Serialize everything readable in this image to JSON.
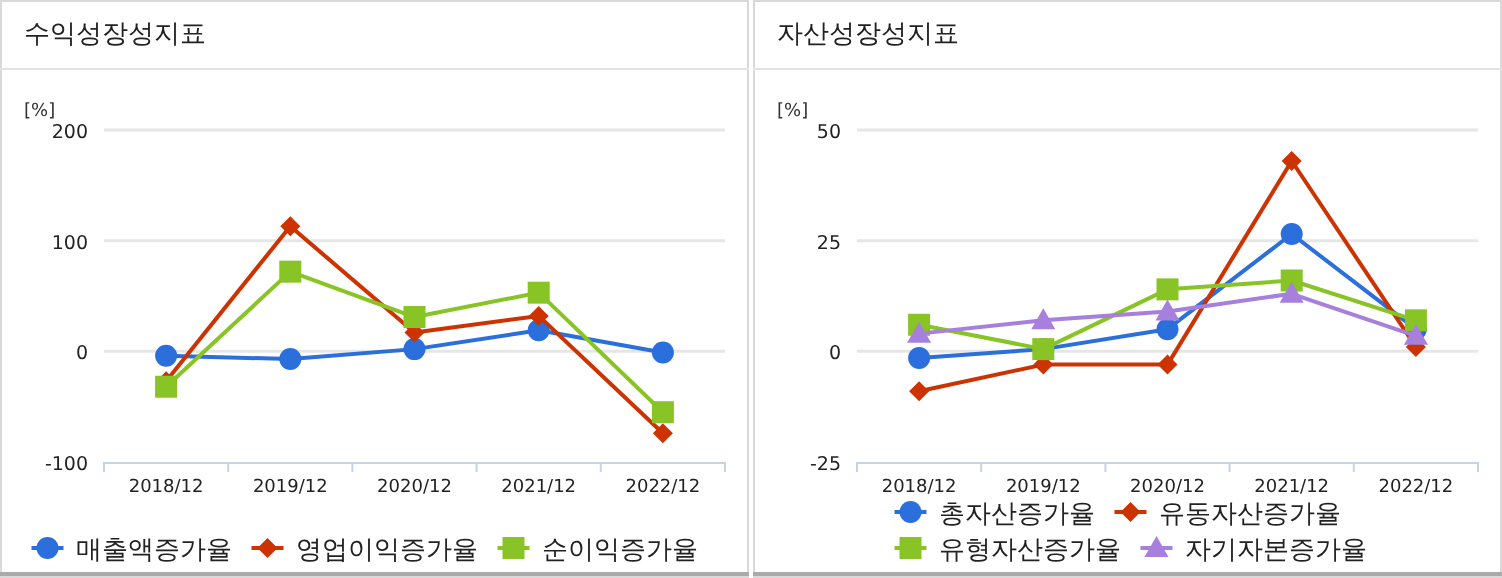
{
  "chart_data": [
    {
      "type": "line",
      "title": "수익성장성지표",
      "ylabel": "[%]",
      "categories": [
        "2018/12",
        "2019/12",
        "2020/12",
        "2021/12",
        "2022/12"
      ],
      "ylim": [
        -100,
        200
      ],
      "yticks": [
        -100,
        0,
        100,
        200
      ],
      "grid": "y",
      "legend": "bottom",
      "series": [
        {
          "name": "매출액증가율",
          "color": "#2a6fdb",
          "marker": "circle",
          "values": [
            -4,
            -7,
            2,
            19,
            -1
          ]
        },
        {
          "name": "영업이익증가율",
          "color": "#cc3300",
          "marker": "diamond",
          "values": [
            -27,
            113,
            17,
            32,
            -74
          ]
        },
        {
          "name": "순이익증가율",
          "color": "#88c425",
          "marker": "square",
          "values": [
            -32,
            72,
            31,
            53,
            -55
          ]
        }
      ]
    },
    {
      "type": "line",
      "title": "자산성장성지표",
      "ylabel": "[%]",
      "categories": [
        "2018/12",
        "2019/12",
        "2020/12",
        "2021/12",
        "2022/12"
      ],
      "ylim": [
        -25,
        50
      ],
      "yticks": [
        -25,
        0,
        25,
        50
      ],
      "grid": "y",
      "legend": "bottom",
      "series": [
        {
          "name": "총자산증가율",
          "color": "#2a6fdb",
          "marker": "circle",
          "values": [
            -1.5,
            0.5,
            5,
            26.5,
            5
          ]
        },
        {
          "name": "유동자산증가율",
          "color": "#cc3300",
          "marker": "diamond",
          "values": [
            -9,
            -3,
            -3,
            43,
            1
          ]
        },
        {
          "name": "유형자산증가율",
          "color": "#88c425",
          "marker": "square",
          "values": [
            6,
            0.5,
            14,
            16,
            7
          ]
        },
        {
          "name": "자기자본증가율",
          "color": "#a77fdc",
          "marker": "triangle",
          "values": [
            4,
            7,
            9,
            13,
            3.5
          ]
        }
      ]
    }
  ]
}
